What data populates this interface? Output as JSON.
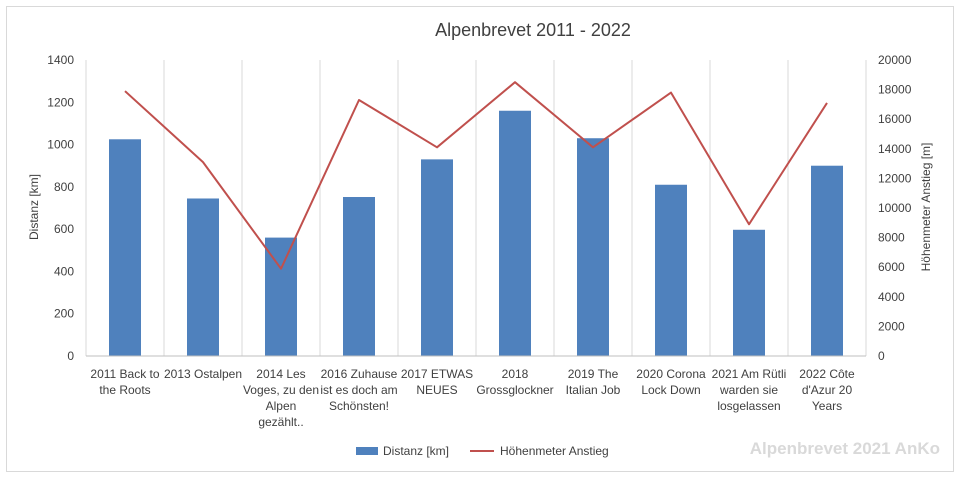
{
  "chart_data": {
    "type": "bar",
    "title": "Alpenbrevet 2011 - 2022",
    "categories": [
      [
        "2011 Back to",
        "the Roots"
      ],
      [
        "2013 Ostalpen"
      ],
      [
        "2014 Les",
        "Voges, zu den",
        "Alpen",
        "gezählt.."
      ],
      [
        "2016 Zuhause",
        "ist es doch am",
        "Schönsten!"
      ],
      [
        "2017 ETWAS",
        "NEUES"
      ],
      [
        "2018",
        "Grossglockner"
      ],
      [
        "2019 The",
        "Italian Job"
      ],
      [
        "2020 Corona",
        "Lock Down"
      ],
      [
        "2021 Am Rütli",
        "warden sie",
        "losgelassen"
      ],
      [
        "2022 Côte",
        "d'Azur 20",
        "Years"
      ]
    ],
    "series": [
      {
        "name": "Distanz [km]",
        "type": "bar",
        "axis": "left",
        "color": "#4f81bd",
        "values": [
          1025,
          745,
          560,
          752,
          930,
          1160,
          1030,
          810,
          597,
          900
        ]
      },
      {
        "name": "Höhenmeter Anstieg",
        "type": "line",
        "axis": "right",
        "color": "#c0504d",
        "values": [
          17900,
          13100,
          5900,
          17300,
          14100,
          18500,
          14100,
          17800,
          8900,
          17100
        ]
      }
    ],
    "ylabel": "Distanz [km]",
    "y2label": "Höhenmeter Anstieg [m]",
    "ylim": [
      0,
      1400
    ],
    "y2lim": [
      0,
      20000
    ],
    "yticks": [
      "0",
      "200",
      "400",
      "600",
      "800",
      "1000",
      "1200",
      "1400"
    ],
    "y2ticks": [
      "0",
      "2000",
      "4000",
      "6000",
      "8000",
      "10000",
      "12000",
      "14000",
      "16000",
      "18000",
      "20000"
    ],
    "grid": "vertical",
    "legend_position": "bottom",
    "watermark": "Alpenbrevet 2021 AnKo"
  }
}
